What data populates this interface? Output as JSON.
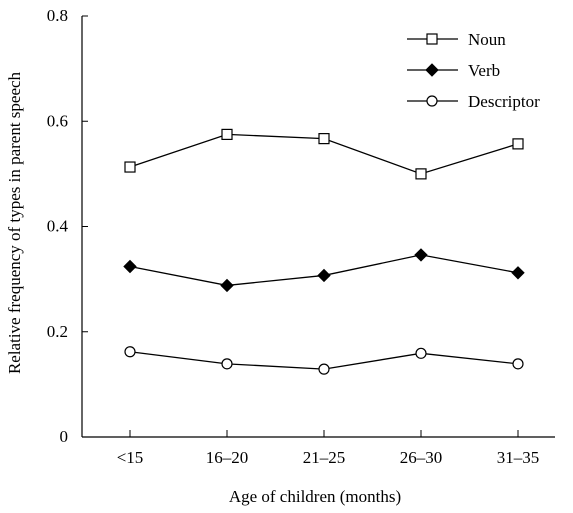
{
  "chart_data": {
    "type": "line",
    "xlabel": "Age of children (months)",
    "ylabel": "Relative frequency of types in parent speech",
    "categories": [
      "<15",
      "16–20",
      "21–25",
      "26–30",
      "31–35"
    ],
    "ylim": [
      0,
      0.8
    ],
    "yticks": [
      "0",
      "0.2",
      "0.4",
      "0.6",
      "0.8"
    ],
    "grid": false,
    "legend_position": "top-right",
    "series": [
      {
        "name": "Noun",
        "marker": "square-open",
        "values": [
          0.513,
          0.575,
          0.567,
          0.5,
          0.557
        ]
      },
      {
        "name": "Verb",
        "marker": "diamond-filled",
        "values": [
          0.324,
          0.288,
          0.307,
          0.346,
          0.312
        ]
      },
      {
        "name": "Descriptor",
        "marker": "circle-open",
        "values": [
          0.162,
          0.139,
          0.129,
          0.159,
          0.139
        ]
      }
    ]
  }
}
